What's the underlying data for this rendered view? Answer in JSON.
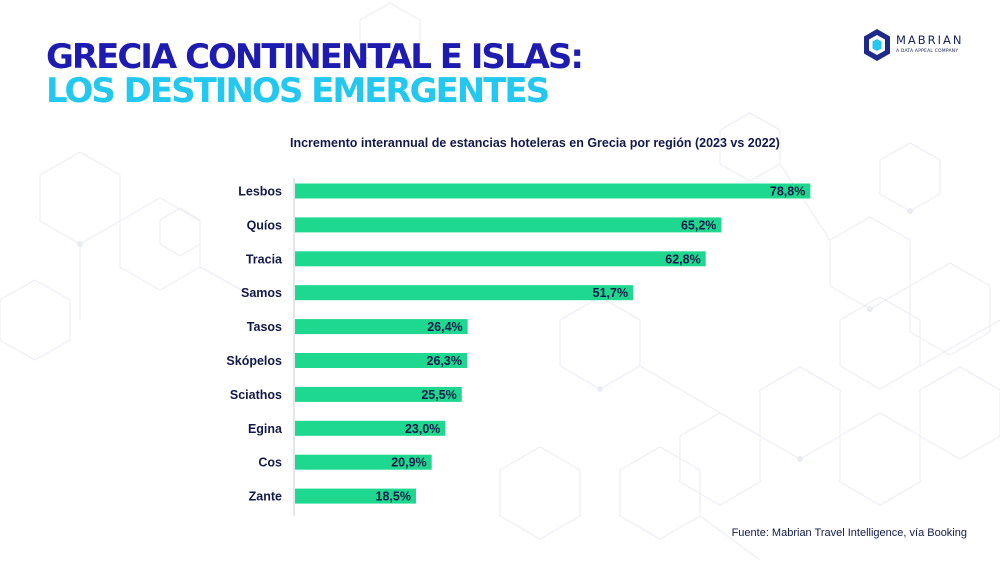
{
  "header": {
    "title_line1": "GRECIA CONTINENTAL E ISLAS:",
    "title_line2": "LOS DESTINOS EMERGENTES"
  },
  "logo": {
    "name": "MABRIAN",
    "tagline": "A DATA APPEAL COMPANY",
    "icon": "hexagon-logo-icon"
  },
  "colors": {
    "title_primary": "#1d1bb0",
    "title_secondary": "#22c8f0",
    "bar": "#1ed88f",
    "text_dark": "#121a4a"
  },
  "chart_data": {
    "type": "bar",
    "orientation": "horizontal",
    "title": "Incremento interannual de estancias hoteleras en Grecia por región (2023 vs 2022)",
    "categories": [
      "Lesbos",
      "Quíos",
      "Tracia",
      "Samos",
      "Tasos",
      "Skópelos",
      "Sciathos",
      "Egina",
      "Cos",
      "Zante"
    ],
    "values": [
      78.8,
      65.2,
      62.8,
      51.7,
      26.4,
      26.3,
      25.5,
      23.0,
      20.9,
      18.5
    ],
    "value_labels": [
      "78,8%",
      "65,2%",
      "62,8%",
      "51,7%",
      "26,4%",
      "26,3%",
      "25,5%",
      "23,0%",
      "20,9%",
      "18,5%"
    ],
    "xlim": [
      0,
      100
    ],
    "grid": false,
    "legend": "none"
  },
  "footer": {
    "source": "Fuente: Mabrian Travel Intelligence, vía Booking"
  }
}
